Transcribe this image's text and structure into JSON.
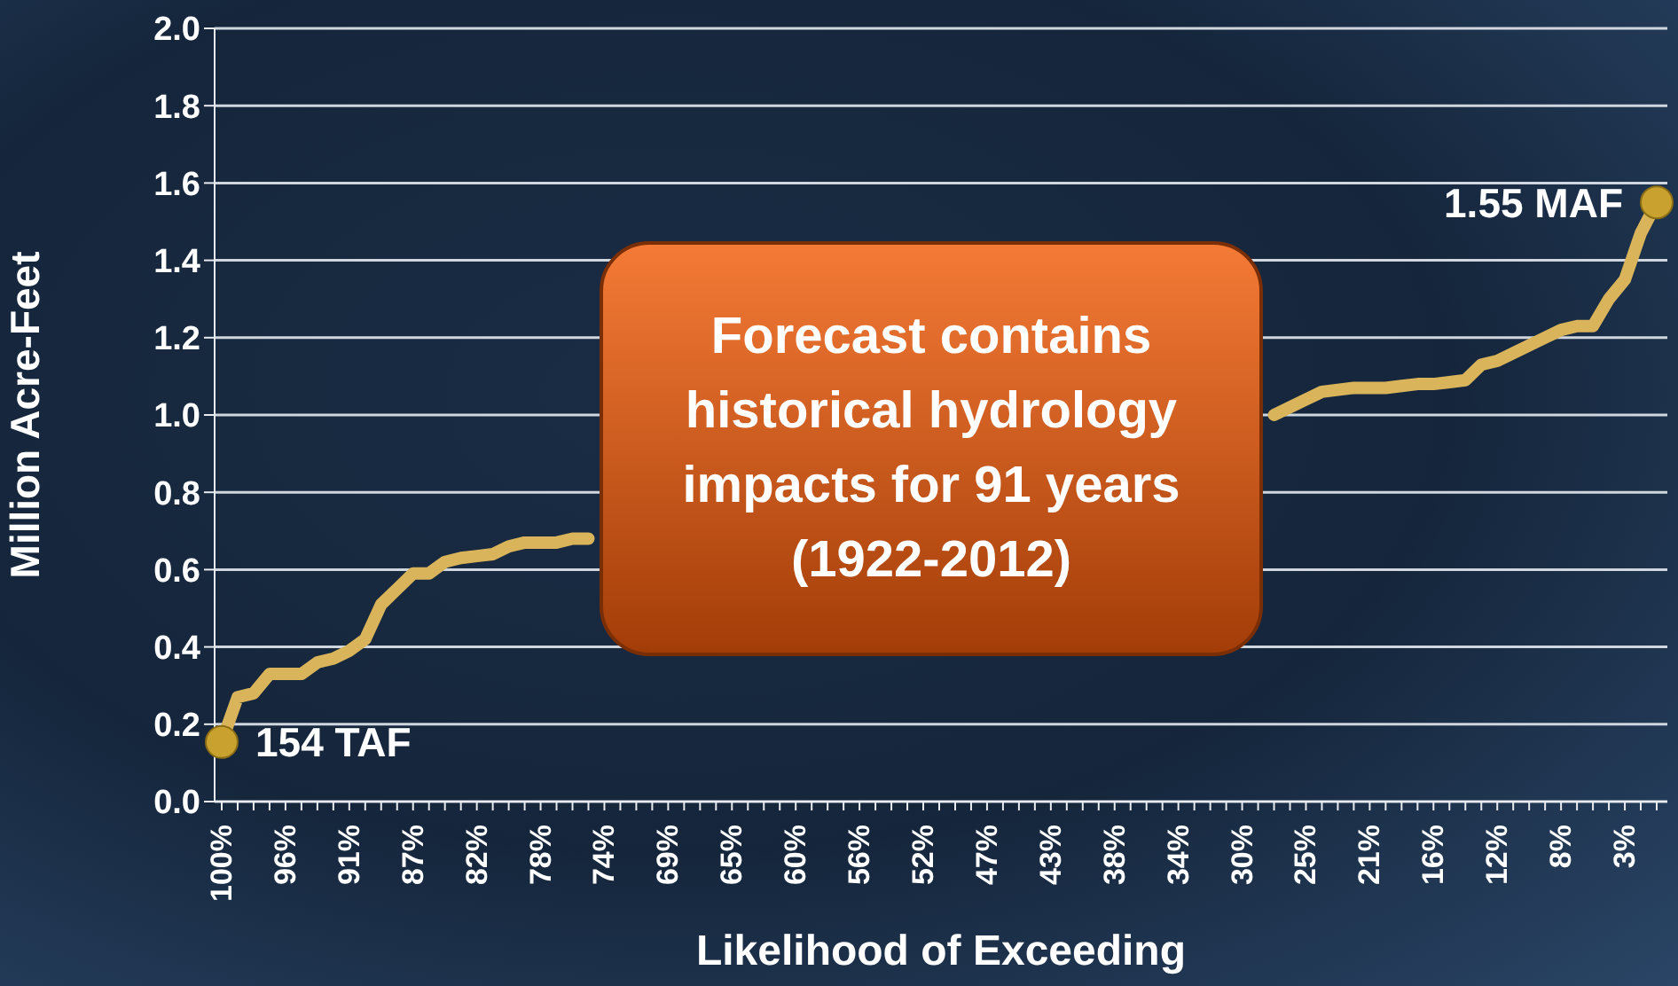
{
  "chart_data": {
    "type": "line",
    "xlabel": "Likelihood of Exceeding",
    "ylabel": "Million Acre-Feet",
    "categories": [
      "100%",
      null,
      null,
      null,
      "96%",
      null,
      null,
      null,
      "91%",
      null,
      null,
      null,
      "87%",
      null,
      null,
      null,
      "82%",
      null,
      null,
      null,
      "78%",
      null,
      null,
      null,
      "74%",
      null,
      null,
      null,
      "69%",
      null,
      null,
      null,
      "65%",
      null,
      null,
      null,
      "60%",
      null,
      null,
      null,
      "56%",
      null,
      null,
      null,
      "52%",
      null,
      null,
      null,
      "47%",
      null,
      null,
      null,
      "43%",
      null,
      null,
      null,
      "38%",
      null,
      null,
      null,
      "34%",
      null,
      null,
      null,
      "30%",
      null,
      null,
      null,
      "25%",
      null,
      null,
      null,
      "21%",
      null,
      null,
      null,
      "16%",
      null,
      null,
      null,
      "12%",
      null,
      null,
      null,
      "8%",
      null,
      null,
      null,
      "3%",
      null,
      null
    ],
    "series": [
      {
        "color": "#d9b45a",
        "values": [
          0.154,
          0.27,
          0.28,
          0.33,
          0.33,
          0.33,
          0.36,
          0.37,
          0.39,
          0.42,
          0.51,
          0.55,
          0.59,
          0.59,
          0.62,
          0.63,
          0.635,
          0.64,
          0.66,
          0.67,
          0.67,
          0.67,
          0.68,
          0.68,
          null,
          null,
          null,
          null,
          null,
          null,
          null,
          null,
          null,
          null,
          null,
          null,
          null,
          null,
          null,
          null,
          null,
          null,
          null,
          null,
          null,
          null,
          null,
          null,
          null,
          null,
          null,
          null,
          null,
          null,
          null,
          null,
          null,
          null,
          null,
          null,
          null,
          null,
          null,
          null,
          null,
          null,
          1.0,
          1.02,
          1.04,
          1.06,
          1.065,
          1.07,
          1.07,
          1.07,
          1.075,
          1.08,
          1.08,
          1.085,
          1.09,
          1.13,
          1.14,
          1.16,
          1.18,
          1.2,
          1.22,
          1.23,
          1.23,
          1.3,
          1.35,
          1.47,
          1.55
        ]
      }
    ],
    "ylim": [
      0,
      2
    ],
    "yticks": [
      {
        "value": 0,
        "label": "0.0"
      },
      0.2,
      0.4,
      0.6,
      0.8,
      {
        "value": 1,
        "label": "1.0"
      },
      1.2,
      1.4,
      1.6,
      1.8,
      {
        "value": 2,
        "label": "2.0"
      }
    ],
    "grid": "y",
    "marker": "none",
    "line_style": "solid",
    "legend": false,
    "annotations": [
      {
        "text": "154 TAF",
        "x": "100%",
        "y": 0.154
      },
      "1.55 MAF",
      "Forecast contains historical hydrology impacts for 91 years (1922-2012)"
    ]
  }
}
